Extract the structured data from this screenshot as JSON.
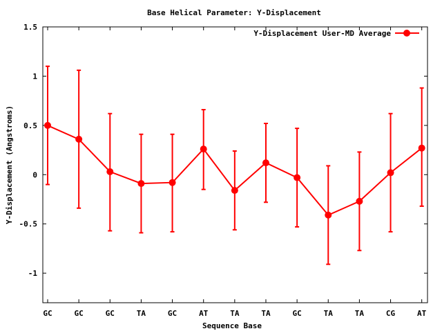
{
  "chart_data": {
    "type": "line",
    "title": "Base  Helical Parameter: Y-Displacement",
    "xlabel": "Sequence Base",
    "ylabel": "Y-Displacement (Angstroms)",
    "categories": [
      "GC",
      "GC",
      "GC",
      "TA",
      "GC",
      "AT",
      "TA",
      "TA",
      "GC",
      "TA",
      "TA",
      "CG",
      "AT"
    ],
    "series": [
      {
        "name": "Y-Displacement User-MD Average",
        "color": "#ff0000",
        "values": [
          0.5,
          0.36,
          0.03,
          -0.09,
          -0.08,
          0.26,
          -0.16,
          0.12,
          -0.03,
          -0.41,
          -0.27,
          0.02,
          0.27
        ],
        "err_low": [
          -0.1,
          -0.34,
          -0.57,
          -0.59,
          -0.58,
          -0.15,
          -0.56,
          -0.28,
          -0.53,
          -0.91,
          -0.77,
          -0.58,
          -0.32
        ],
        "err_high": [
          1.1,
          1.06,
          0.62,
          0.41,
          0.41,
          0.66,
          0.24,
          0.52,
          0.47,
          0.09,
          0.23,
          0.62,
          0.88
        ]
      }
    ],
    "ylim": [
      -1.3,
      1.5
    ],
    "yticks": [
      -1,
      -0.5,
      0,
      0.5,
      1,
      1.5
    ],
    "ytick_labels": [
      "-1",
      "-0.5",
      "0",
      "0.5",
      "1",
      "1.5"
    ],
    "grid": false,
    "legend_position": "top-right"
  }
}
